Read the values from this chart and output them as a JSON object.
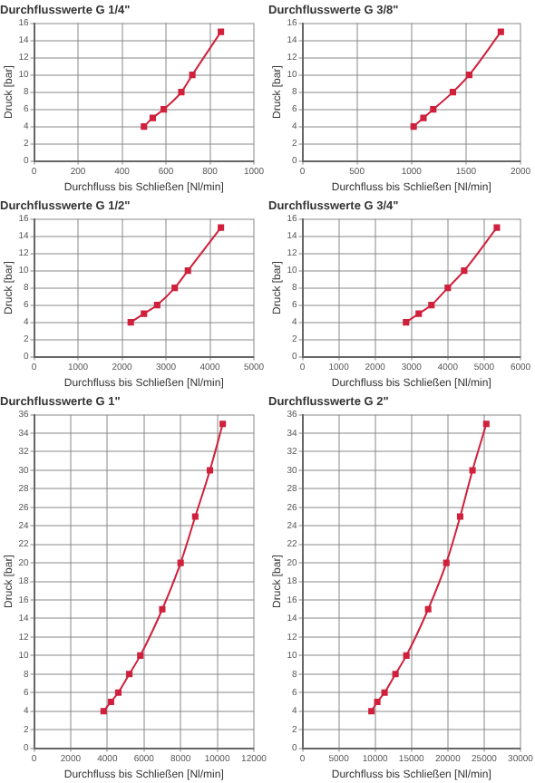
{
  "chart_data": [
    {
      "type": "line",
      "title": "Durchflusswerte G 1/4\"",
      "xlabel": "Durchfluss bis Schließen [Nl/min]",
      "ylabel": "Druck [bar]",
      "x": [
        500,
        540,
        590,
        670,
        720,
        850
      ],
      "series": [
        {
          "color": "#d0213c",
          "values": [
            4,
            5,
            6,
            8,
            10,
            15
          ]
        }
      ],
      "xlim": [
        0,
        1000
      ],
      "xticks": [
        0,
        200,
        400,
        600,
        800,
        1000
      ],
      "ylim": [
        0,
        16
      ],
      "yticks": [
        0,
        2,
        4,
        6,
        8,
        10,
        12,
        14,
        16
      ],
      "grid": true,
      "marker": "square",
      "line_style": "solid"
    },
    {
      "type": "line",
      "title": "Durchflusswerte G 3/8\"",
      "xlabel": "Durchfluss bis Schließen [Nl/min]",
      "ylabel": "Druck [bar]",
      "x": [
        1020,
        1110,
        1200,
        1380,
        1530,
        1820
      ],
      "series": [
        {
          "color": "#d0213c",
          "values": [
            4,
            5,
            6,
            8,
            10,
            15
          ]
        }
      ],
      "xlim": [
        0,
        2000
      ],
      "xticks": [
        0,
        500,
        1000,
        1500,
        2000
      ],
      "ylim": [
        0,
        16
      ],
      "yticks": [
        0,
        2,
        4,
        6,
        8,
        10,
        12,
        14,
        16
      ],
      "grid": true,
      "marker": "square",
      "line_style": "solid"
    },
    {
      "type": "line",
      "title": "Durchflusswerte G 1/2\"",
      "xlabel": "Durchfluss bis Schließen [Nl/min]",
      "ylabel": "Druck [bar]",
      "x": [
        2200,
        2500,
        2800,
        3200,
        3500,
        4250
      ],
      "series": [
        {
          "color": "#d0213c",
          "values": [
            4,
            5,
            6,
            8,
            10,
            15
          ]
        }
      ],
      "xlim": [
        0,
        5000
      ],
      "xticks": [
        0,
        1000,
        2000,
        3000,
        4000,
        5000
      ],
      "ylim": [
        0,
        16
      ],
      "yticks": [
        0,
        2,
        4,
        6,
        8,
        10,
        12,
        14,
        16
      ],
      "grid": true,
      "marker": "square",
      "line_style": "solid"
    },
    {
      "type": "line",
      "title": "Durchflusswerte G 3/4\"",
      "xlabel": "Durchfluss bis Schließen [Nl/min]",
      "ylabel": "Druck [bar]",
      "x": [
        2850,
        3200,
        3550,
        4000,
        4450,
        5350
      ],
      "series": [
        {
          "color": "#d0213c",
          "values": [
            4,
            5,
            6,
            8,
            10,
            15
          ]
        }
      ],
      "xlim": [
        0,
        6000
      ],
      "xticks": [
        0,
        1000,
        2000,
        3000,
        4000,
        5000,
        6000
      ],
      "ylim": [
        0,
        16
      ],
      "yticks": [
        0,
        2,
        4,
        6,
        8,
        10,
        12,
        14,
        16
      ],
      "grid": true,
      "marker": "square",
      "line_style": "solid"
    },
    {
      "type": "line",
      "title": "Durchflusswerte G 1\"",
      "xlabel": "Durchfluss bis Schließen [Nl/min]",
      "ylabel": "Druck [bar]",
      "x": [
        3800,
        4200,
        4600,
        5200,
        5800,
        7000,
        8000,
        8800,
        9600,
        10300
      ],
      "series": [
        {
          "color": "#d0213c",
          "values": [
            4,
            5,
            6,
            8,
            10,
            15,
            20,
            25,
            30,
            35
          ]
        }
      ],
      "xlim": [
        0,
        12000
      ],
      "xticks": [
        0,
        2000,
        4000,
        6000,
        8000,
        10000,
        12000
      ],
      "ylim": [
        0,
        36
      ],
      "yticks": [
        0,
        2,
        4,
        6,
        8,
        10,
        12,
        14,
        16,
        18,
        20,
        22,
        24,
        26,
        28,
        30,
        32,
        34,
        36
      ],
      "grid": true,
      "marker": "square",
      "line_style": "solid"
    },
    {
      "type": "line",
      "title": "Durchflusswerte G 2\"",
      "xlabel": "Durchfluss bis Schließen [Nl/min]",
      "ylabel": "Druck [bar]",
      "x": [
        9500,
        10300,
        11300,
        12800,
        14300,
        17300,
        19800,
        21700,
        23400,
        25300
      ],
      "series": [
        {
          "color": "#d0213c",
          "values": [
            4,
            5,
            6,
            8,
            10,
            15,
            20,
            25,
            30,
            35
          ]
        }
      ],
      "xlim": [
        0,
        30000
      ],
      "xticks": [
        0,
        5000,
        10000,
        15000,
        20000,
        25000,
        30000
      ],
      "ylim": [
        0,
        36
      ],
      "yticks": [
        0,
        2,
        4,
        6,
        8,
        10,
        12,
        14,
        16,
        18,
        20,
        22,
        24,
        26,
        28,
        30,
        32,
        34,
        36
      ],
      "grid": true,
      "marker": "square",
      "line_style": "solid"
    }
  ]
}
